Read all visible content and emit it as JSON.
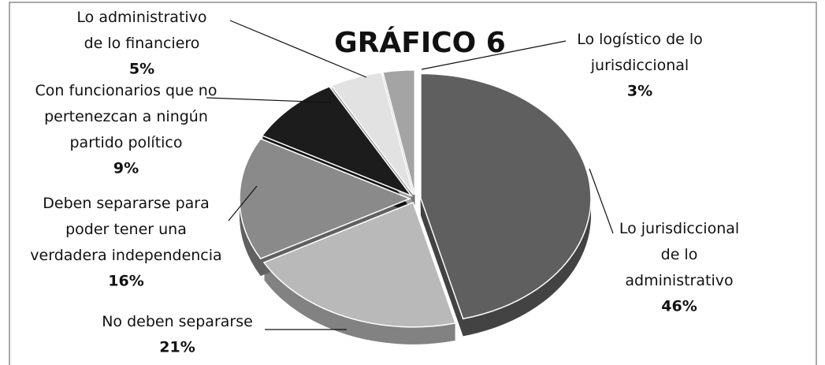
{
  "chart_data": {
    "type": "pie3d",
    "title": "GRÁFICO 6",
    "categories": [
      "Lo jurisdiccional\nde lo\nadministrativo",
      "No deben separarse",
      "Deben separarse para\npoder tener una\nverdadera independencia",
      "Con funcionarios que no\npertenezcan a ningún\npartido político",
      "Lo administrativo\nde lo financiero",
      "Lo logístico de lo\njurisdiccional"
    ],
    "values": [
      46,
      21,
      16,
      9,
      5,
      3
    ],
    "value_labels": [
      "46%",
      "21%",
      "16%",
      "9%",
      "5%",
      "3%"
    ],
    "colors": [
      "#5f5f5f",
      "#b9b9b9",
      "#8a8a8a",
      "#1c1c1c",
      "#e2e2e2",
      "#a4a4a4"
    ]
  }
}
